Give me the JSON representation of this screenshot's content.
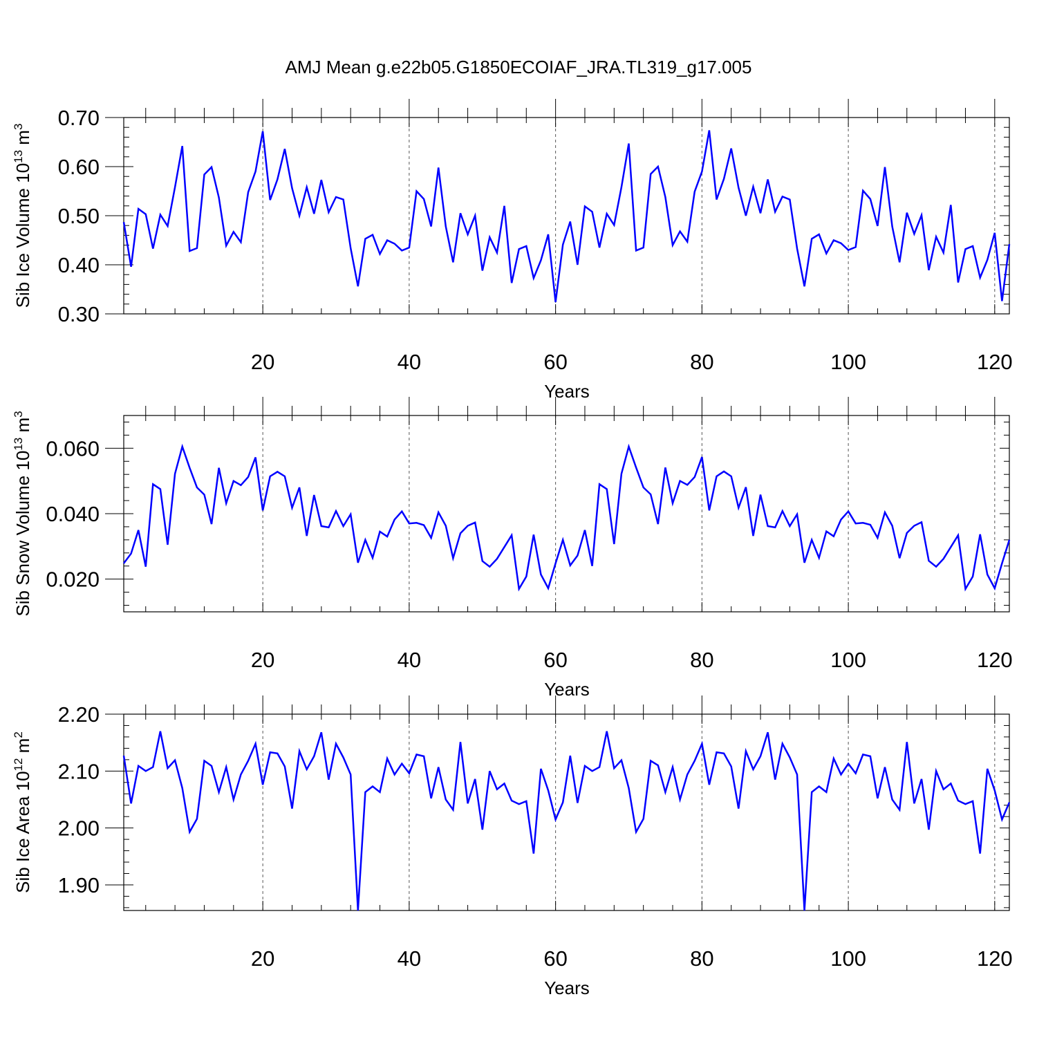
{
  "title": "AMJ Mean g.e22b05.G1850ECOIAF_JRA.TL319_g17.005",
  "colors": {
    "series": "#0000ff",
    "frame": "#000000",
    "grid": "#555555"
  },
  "chart_data": [
    {
      "type": "line",
      "title": "",
      "xlabel": "Years",
      "ylabel_main": "Sib Ice Volume 10",
      "ylabel_sup": "13",
      "ylabel_unit": " m",
      "ylabel_unit_sup": "3",
      "xlim": [
        1,
        122
      ],
      "ylim": [
        0.3,
        0.7
      ],
      "x_ticks": [
        20,
        40,
        60,
        80,
        100,
        120
      ],
      "y_ticks": [
        0.3,
        0.4,
        0.5,
        0.6,
        0.7
      ],
      "y_tick_labels": [
        "0.30",
        "0.40",
        "0.50",
        "0.60",
        "0.70"
      ],
      "grid": "dashed vertical at major x ticks",
      "series": [
        {
          "x_start": 1,
          "values": [
            0.487,
            0.396,
            0.514,
            0.503,
            0.433,
            0.502,
            0.479,
            0.558,
            0.642,
            0.428,
            0.434,
            0.584,
            0.599,
            0.537,
            0.439,
            0.467,
            0.446,
            0.548,
            0.59,
            0.672,
            0.532,
            0.574,
            0.636,
            0.556,
            0.5,
            0.558,
            0.504,
            0.573,
            0.507,
            0.538,
            0.533,
            0.434,
            0.356,
            0.453,
            0.461,
            0.422,
            0.45,
            0.443,
            0.429,
            0.435,
            0.55,
            0.534,
            0.478,
            0.598,
            0.478,
            0.405,
            0.505,
            0.462,
            0.5,
            0.388,
            0.456,
            0.425,
            0.52,
            0.363,
            0.432,
            0.438,
            0.373,
            0.409,
            0.462,
            0.324,
            0.441,
            0.488,
            0.4,
            0.519,
            0.508,
            0.435,
            0.504,
            0.481,
            0.558,
            0.647,
            0.429,
            0.435,
            0.585,
            0.6,
            0.538,
            0.44,
            0.468,
            0.447,
            0.549,
            0.59,
            0.674,
            0.533,
            0.575,
            0.637,
            0.557,
            0.5,
            0.559,
            0.505,
            0.574,
            0.508,
            0.539,
            0.533,
            0.433,
            0.356,
            0.453,
            0.462,
            0.423,
            0.45,
            0.444,
            0.43,
            0.436,
            0.551,
            0.534,
            0.479,
            0.599,
            0.478,
            0.405,
            0.506,
            0.463,
            0.501,
            0.389,
            0.457,
            0.425,
            0.522,
            0.364,
            0.432,
            0.438,
            0.374,
            0.41,
            0.465,
            0.326,
            0.442
          ]
        }
      ]
    },
    {
      "type": "line",
      "title": "",
      "xlabel": "Years",
      "ylabel_main": "Sib Snow Volume 10",
      "ylabel_sup": "13",
      "ylabel_unit": " m",
      "ylabel_unit_sup": "3",
      "xlim": [
        1,
        122
      ],
      "ylim": [
        0.01,
        0.07
      ],
      "x_ticks": [
        20,
        40,
        60,
        80,
        100,
        120
      ],
      "y_ticks": [
        0.02,
        0.04,
        0.06
      ],
      "y_tick_labels": [
        "0.020",
        "0.040",
        "0.060"
      ],
      "grid": "dashed vertical at major x ticks",
      "series": [
        {
          "x_start": 1,
          "values": [
            0.0248,
            0.0278,
            0.035,
            0.0238,
            0.049,
            0.0475,
            0.0305,
            0.0522,
            0.0605,
            0.054,
            0.048,
            0.0458,
            0.0368,
            0.054,
            0.0432,
            0.05,
            0.0487,
            0.0512,
            0.0572,
            0.041,
            0.0514,
            0.0528,
            0.0514,
            0.0418,
            0.048,
            0.0332,
            0.0457,
            0.0362,
            0.0358,
            0.0408,
            0.0362,
            0.0398,
            0.025,
            0.032,
            0.0265,
            0.0345,
            0.033,
            0.0382,
            0.0407,
            0.037,
            0.0372,
            0.0365,
            0.0326,
            0.0404,
            0.0363,
            0.0264,
            0.034,
            0.0363,
            0.0373,
            0.0255,
            0.0238,
            0.0262,
            0.0298,
            0.0334,
            0.017,
            0.0208,
            0.0336,
            0.0214,
            0.0172,
            0.0248,
            0.032,
            0.0242,
            0.0272,
            0.035,
            0.024,
            0.049,
            0.0475,
            0.0307,
            0.0522,
            0.0605,
            0.0541,
            0.048,
            0.0459,
            0.0368,
            0.0541,
            0.0432,
            0.05,
            0.0488,
            0.0512,
            0.0573,
            0.041,
            0.0514,
            0.0529,
            0.0514,
            0.0418,
            0.0481,
            0.0332,
            0.0458,
            0.0362,
            0.0358,
            0.0408,
            0.0362,
            0.0398,
            0.025,
            0.032,
            0.0265,
            0.0346,
            0.0331,
            0.0382,
            0.0407,
            0.037,
            0.0372,
            0.0366,
            0.0326,
            0.0404,
            0.0363,
            0.0264,
            0.0341,
            0.0363,
            0.0374,
            0.0256,
            0.0238,
            0.0262,
            0.0298,
            0.0334,
            0.017,
            0.0208,
            0.0337,
            0.0214,
            0.0172,
            0.0248,
            0.032
          ]
        }
      ]
    },
    {
      "type": "line",
      "title": "",
      "xlabel": "Years",
      "ylabel_main": "Sib Ice Area 10",
      "ylabel_sup": "12",
      "ylabel_unit": " m",
      "ylabel_unit_sup": "2",
      "xlim": [
        1,
        122
      ],
      "ylim": [
        1.855,
        2.2
      ],
      "x_ticks": [
        20,
        40,
        60,
        80,
        100,
        120
      ],
      "y_ticks": [
        1.9,
        2.0,
        2.1,
        2.2
      ],
      "y_tick_labels": [
        "1.90",
        "2.00",
        "2.10",
        "2.20"
      ],
      "grid": "dashed vertical at major x ticks",
      "series": [
        {
          "x_start": 1,
          "values": [
            2.127,
            2.043,
            2.109,
            2.1,
            2.107,
            2.17,
            2.105,
            2.119,
            2.07,
            1.993,
            2.016,
            2.118,
            2.109,
            2.063,
            2.107,
            2.05,
            2.094,
            2.118,
            2.148,
            2.076,
            2.133,
            2.131,
            2.108,
            2.034,
            2.135,
            2.103,
            2.126,
            2.168,
            2.085,
            2.148,
            2.124,
            2.094,
            1.855,
            2.063,
            2.073,
            2.063,
            2.122,
            2.094,
            2.113,
            2.096,
            2.129,
            2.126,
            2.052,
            2.107,
            2.05,
            2.032,
            2.151,
            2.043,
            2.086,
            1.997,
            2.1,
            2.068,
            2.078,
            2.048,
            2.042,
            2.047,
            1.955,
            2.104,
            2.066,
            2.015,
            2.045,
            2.127,
            2.044,
            2.109,
            2.1,
            2.107,
            2.17,
            2.105,
            2.119,
            2.07,
            1.993,
            2.016,
            2.118,
            2.11,
            2.063,
            2.107,
            2.05,
            2.094,
            2.118,
            2.148,
            2.076,
            2.133,
            2.131,
            2.108,
            2.034,
            2.135,
            2.103,
            2.126,
            2.168,
            2.085,
            2.148,
            2.124,
            2.094,
            1.855,
            2.063,
            2.073,
            2.063,
            2.122,
            2.094,
            2.113,
            2.096,
            2.129,
            2.126,
            2.052,
            2.107,
            2.05,
            2.032,
            2.151,
            2.043,
            2.086,
            1.997,
            2.1,
            2.068,
            2.078,
            2.048,
            2.042,
            2.047,
            1.955,
            2.104,
            2.066,
            2.015,
            2.045
          ]
        }
      ]
    }
  ]
}
